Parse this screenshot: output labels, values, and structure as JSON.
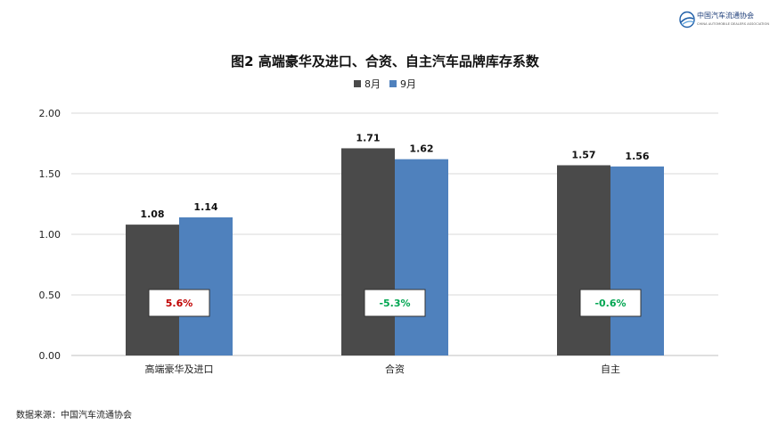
{
  "logo": {
    "name": "中国汽车流通协会",
    "subtitle": "CHINA AUTOMOBILE DEALERS ASSOCIATION"
  },
  "chart_data": {
    "type": "bar",
    "title": "图2  高端豪华及进口、合资、自主汽车品牌库存系数",
    "categories": [
      "高端豪华及进口",
      "合资",
      "自主"
    ],
    "series": [
      {
        "name": "8月",
        "color": "#4a4a4a",
        "values": [
          1.08,
          1.71,
          1.57
        ]
      },
      {
        "name": "9月",
        "color": "#4f81bd",
        "values": [
          1.14,
          1.62,
          1.56
        ]
      }
    ],
    "value_labels": [
      [
        "1.08",
        "1.71",
        "1.57"
      ],
      [
        "1.14",
        "1.62",
        "1.56"
      ]
    ],
    "change_labels": [
      "5.6%",
      "-5.3%",
      "-0.6%"
    ],
    "change_colors": [
      "#c00000",
      "#00a651",
      "#00a651"
    ],
    "yticks": [
      "0.00",
      "0.50",
      "1.00",
      "1.50",
      "2.00"
    ],
    "ylim": [
      0,
      2
    ],
    "grid": true,
    "legend": "top-center"
  },
  "source": "数据来源：中国汽车流通协会"
}
